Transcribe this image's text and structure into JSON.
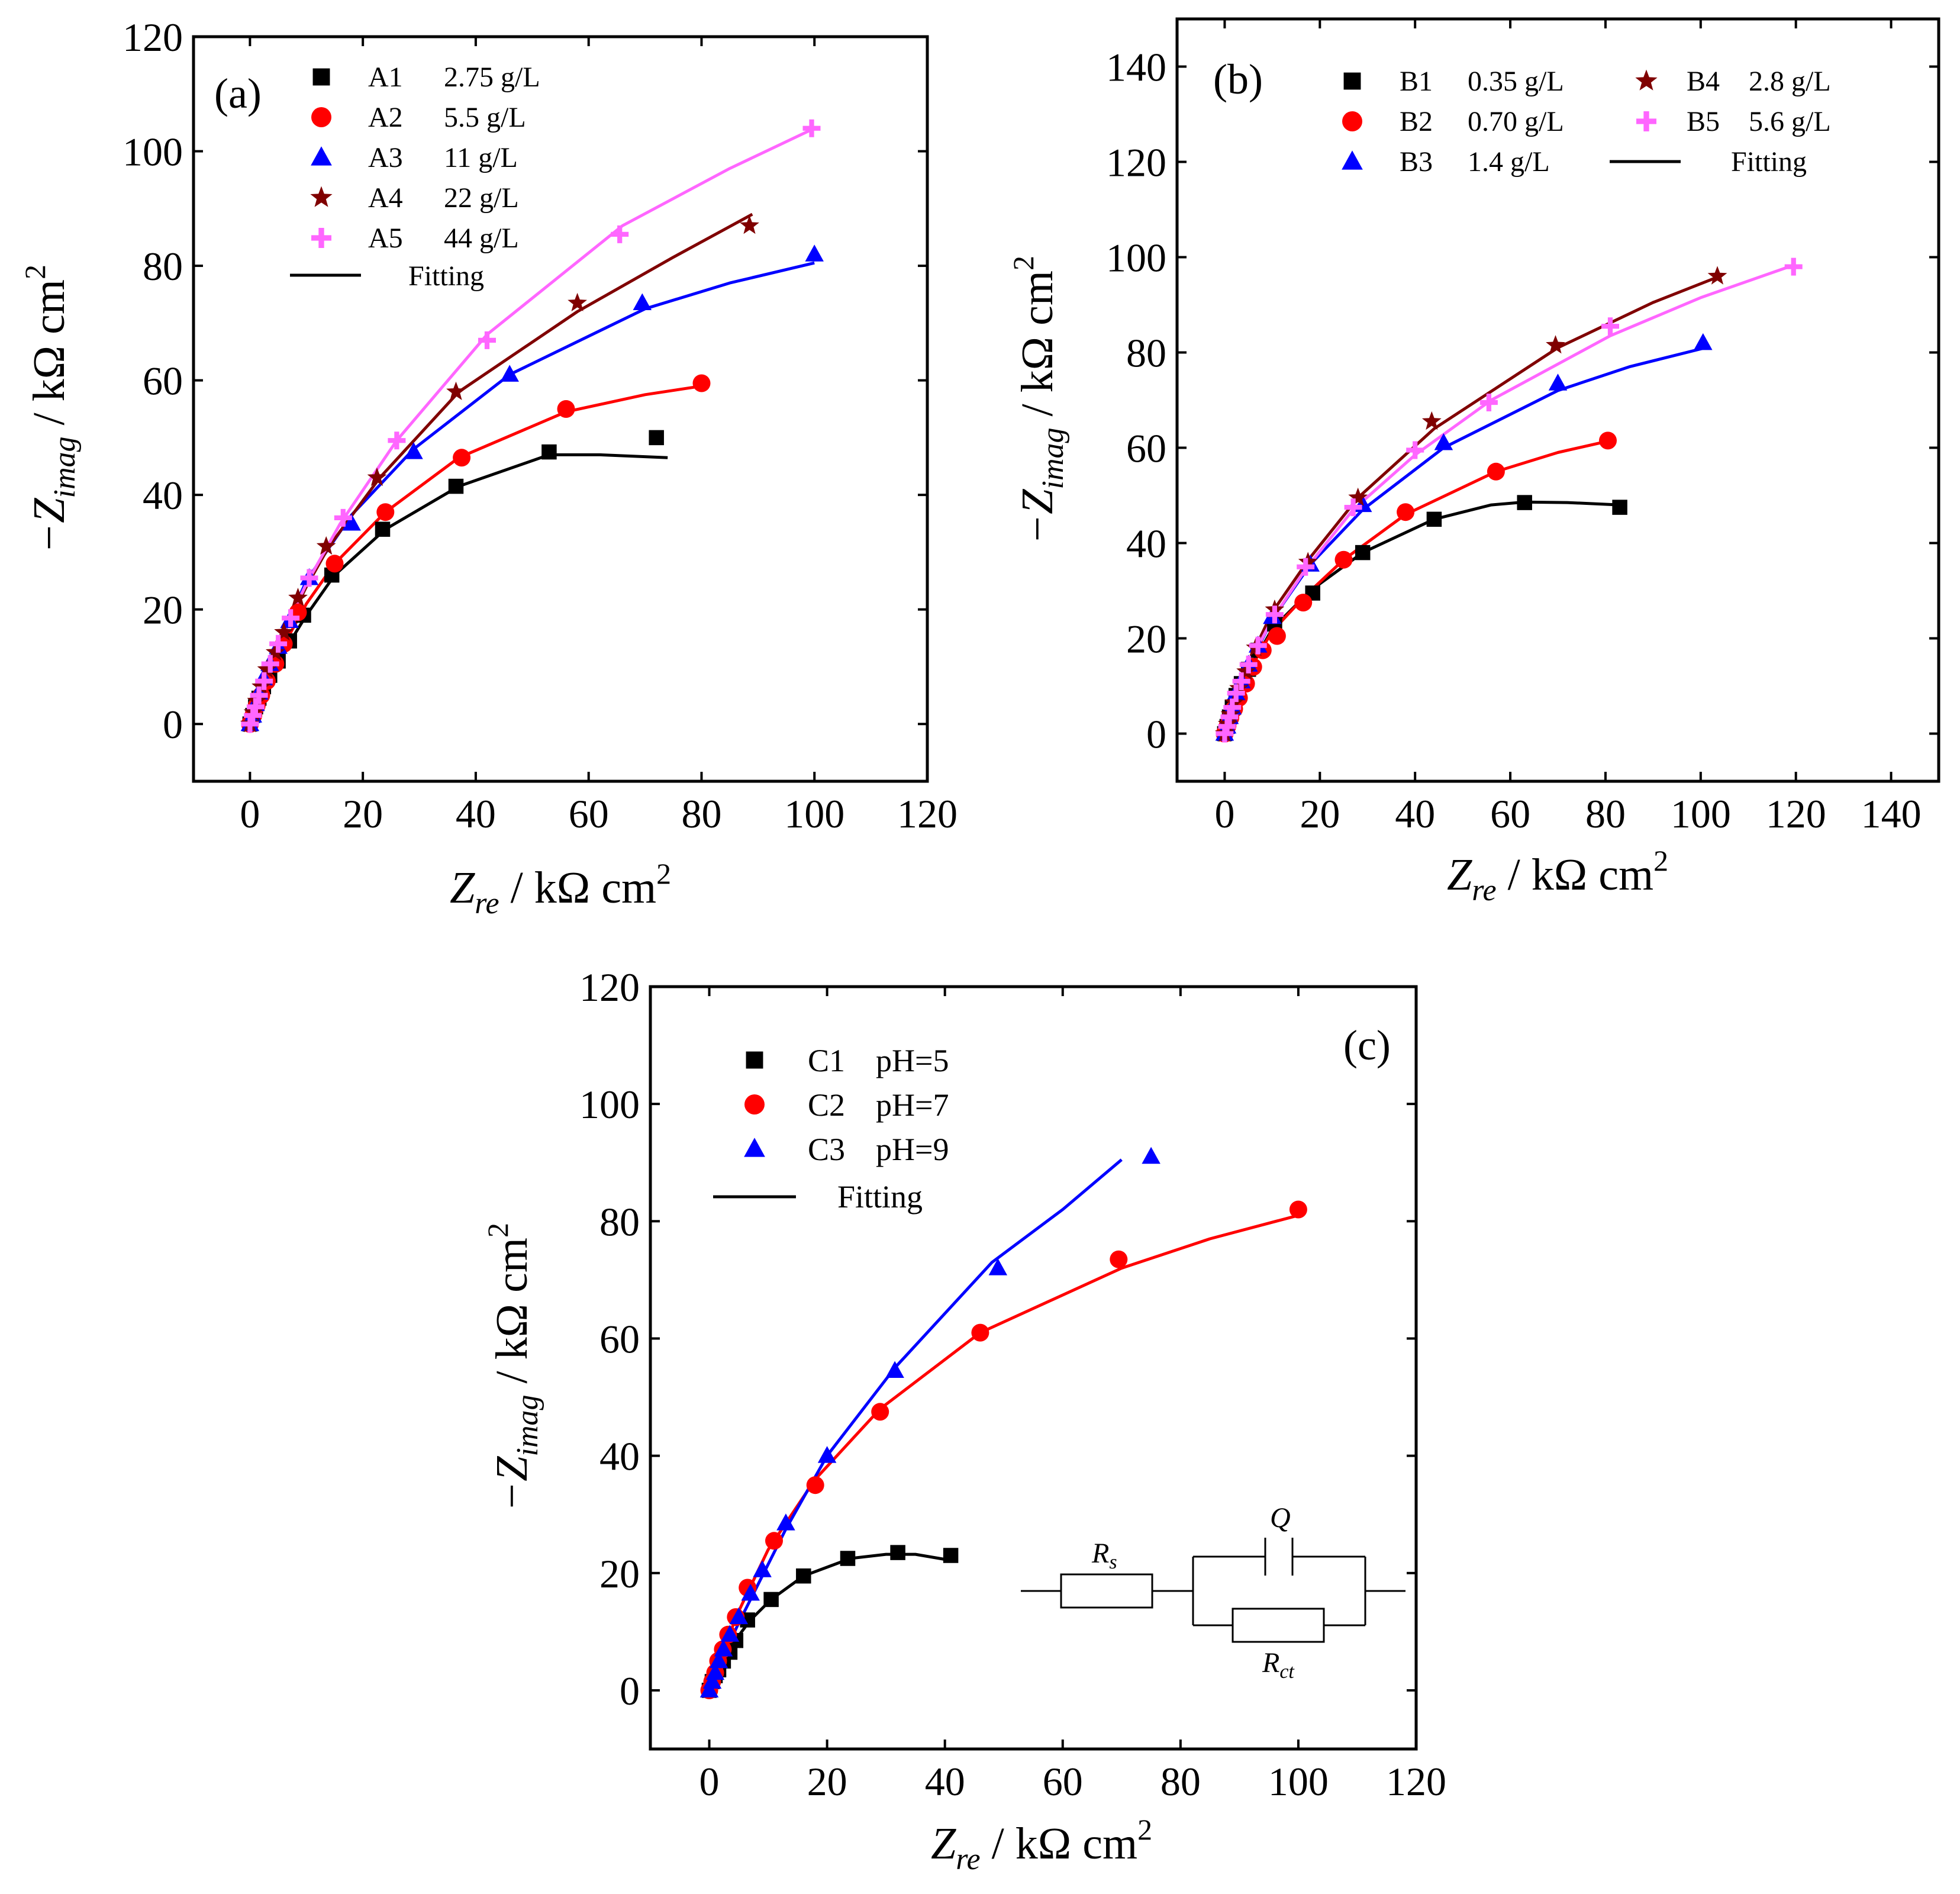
{
  "chart_data": [
    {
      "id": "a",
      "type": "scatter",
      "panel_label": "(a)",
      "xlabel_main": "Z",
      "xlabel_sub": "re",
      "xlabel_unit": " / kΩ cm",
      "xlabel_sup": "2",
      "ylabel_main": "−Z",
      "ylabel_sub": "imag",
      "ylabel_unit": " / kΩ cm",
      "ylabel_sup": "2",
      "xlim": [
        -10,
        120
      ],
      "ylim": [
        -10,
        120
      ],
      "xticks": [
        0,
        20,
        40,
        60,
        80,
        100,
        120
      ],
      "yticks": [
        0,
        20,
        40,
        60,
        80,
        100,
        120
      ],
      "legend_position": "top-left",
      "legend_layout": "single-column",
      "fit_label": "Fitting",
      "series": [
        {
          "name": "A1",
          "desc": "2.75 g/L",
          "marker": "square",
          "color": "#000000",
          "x": [
            0,
            0.5,
            1,
            1.6,
            2.4,
            3.5,
            5,
            7,
            9.5,
            14.5,
            23.5,
            36.5,
            53,
            72
          ],
          "y": [
            0,
            1.5,
            3,
            4.5,
            6.5,
            8.5,
            11,
            14.5,
            19,
            26,
            34,
            41.5,
            47.5,
            50
          ],
          "fit_x": [
            0,
            2,
            5,
            10,
            15,
            24,
            37,
            53,
            62,
            74
          ],
          "fit_y": [
            0,
            5,
            11,
            19,
            26,
            34,
            41.5,
            47,
            47,
            46.5
          ]
        },
        {
          "name": "A2",
          "desc": "5.5 g/L",
          "marker": "circle",
          "color": "#ff0000",
          "x": [
            0,
            0.6,
            1.2,
            2,
            3,
            4.5,
            6,
            8.5,
            15,
            24,
            37.5,
            56,
            80
          ],
          "y": [
            0,
            1.5,
            3.2,
            5,
            7.5,
            10.5,
            14,
            19.5,
            28,
            37,
            46.5,
            55,
            59.5
          ],
          "fit_x": [
            0,
            2,
            5,
            10,
            15,
            24,
            37,
            56,
            70,
            80
          ],
          "fit_y": [
            0,
            5,
            12,
            21,
            28,
            37,
            46.5,
            54.5,
            57.5,
            59
          ]
        },
        {
          "name": "A3",
          "desc": "11 g/L",
          "marker": "triangle",
          "color": "#0000ff",
          "x": [
            0,
            0.5,
            1,
            1.6,
            2.4,
            3.5,
            5,
            7,
            10.5,
            18,
            29,
            46,
            69.5,
            100
          ],
          "y": [
            0,
            1.5,
            3.5,
            5.5,
            8,
            10.5,
            13.5,
            18,
            25.5,
            35,
            47.5,
            61,
            73.5,
            82
          ],
          "fit_x": [
            0,
            2,
            5,
            10,
            18,
            29,
            46,
            70,
            85,
            100
          ],
          "fit_y": [
            0,
            6,
            14,
            25,
            36.5,
            48,
            61,
            72.5,
            77,
            80.5
          ]
        },
        {
          "name": "A4",
          "desc": "22 g/L",
          "marker": "star",
          "color": "#800000",
          "x": [
            0,
            0.6,
            1.2,
            2,
            3,
            4.5,
            6,
            8.5,
            13.5,
            22.5,
            36.5,
            58,
            88.5
          ],
          "y": [
            0,
            2,
            4,
            6.5,
            9.5,
            12.5,
            16,
            22,
            31,
            43,
            58,
            73.5,
            87
          ],
          "fit_x": [
            0,
            2,
            5,
            10,
            14,
            23,
            37,
            58,
            75,
            89
          ],
          "fit_y": [
            0,
            6,
            14,
            24,
            31,
            43,
            58,
            72,
            81.5,
            89
          ]
        },
        {
          "name": "A5",
          "desc": "44 g/L",
          "marker": "plus",
          "color": "#ff66ff",
          "x": [
            0,
            0.5,
            1,
            1.6,
            2.5,
            3.6,
            5,
            7.2,
            10.5,
            16.5,
            26,
            42,
            65.5,
            99.5
          ],
          "y": [
            0,
            1.5,
            3,
            5,
            7.5,
            10.5,
            14,
            18.5,
            25.5,
            36,
            49.5,
            67,
            85.5,
            104
          ],
          "fit_x": [
            0,
            2,
            5,
            10,
            16,
            26,
            42,
            66,
            85,
            100
          ],
          "fit_y": [
            0,
            6,
            14,
            24.5,
            35,
            49.5,
            68,
            87,
            97,
            104
          ]
        }
      ]
    },
    {
      "id": "b",
      "type": "scatter",
      "panel_label": "(b)",
      "xlabel_main": "Z",
      "xlabel_sub": "re",
      "xlabel_unit": " / kΩ cm",
      "xlabel_sup": "2",
      "ylabel_main": "−Z",
      "ylabel_sub": "imag",
      "ylabel_unit": " / kΩ cm",
      "ylabel_sup": "2",
      "xlim": [
        -10,
        150
      ],
      "ylim": [
        -10,
        150
      ],
      "xticks": [
        0,
        20,
        40,
        60,
        80,
        100,
        120,
        140
      ],
      "yticks": [
        0,
        20,
        40,
        60,
        80,
        100,
        120,
        140
      ],
      "legend_position": "top",
      "legend_layout": "two-column",
      "fit_label": "Fitting",
      "series": [
        {
          "name": "B1",
          "desc": "0.35 g/L",
          "marker": "square",
          "color": "#000000",
          "x": [
            0,
            0.5,
            1,
            1.6,
            2.4,
            3.5,
            5,
            7,
            10.5,
            18.5,
            29,
            44,
            63,
            83
          ],
          "y": [
            0,
            1.5,
            3.5,
            5.5,
            8,
            10.5,
            13.5,
            17.5,
            23,
            29.5,
            38,
            45,
            48.5,
            47.5
          ],
          "fit_x": [
            0,
            2,
            5,
            10,
            18,
            29,
            44,
            56,
            63,
            72,
            83
          ],
          "fit_y": [
            0,
            6,
            13,
            22,
            30,
            38,
            45,
            48,
            48.6,
            48.5,
            48
          ]
        },
        {
          "name": "B2",
          "desc": "0.70 g/L",
          "marker": "circle",
          "color": "#ff0000",
          "x": [
            0,
            0.6,
            1.2,
            2,
            3,
            4.5,
            6,
            8,
            11,
            16.5,
            25,
            38,
            57,
            80.5
          ],
          "y": [
            0,
            1.6,
            3.3,
            5.2,
            7.5,
            10.5,
            14,
            17.5,
            20.5,
            27.5,
            36.5,
            46.5,
            55,
            61.5
          ],
          "fit_x": [
            0,
            2,
            5,
            10,
            17,
            25,
            38,
            57,
            70,
            81
          ],
          "fit_y": [
            0,
            6,
            13,
            21.5,
            29,
            36.5,
            46,
            55,
            59,
            61.5
          ]
        },
        {
          "name": "B3",
          "desc": "1.4 g/L",
          "marker": "triangle",
          "color": "#0000ff",
          "x": [
            0,
            0.5,
            1,
            1.6,
            2.4,
            3.5,
            5,
            7,
            10,
            18,
            29,
            46,
            70,
            100.5
          ],
          "y": [
            0,
            1.5,
            3.5,
            5.5,
            8.5,
            11,
            14.5,
            18.5,
            24.5,
            35.5,
            48,
            61,
            73.5,
            82
          ],
          "fit_x": [
            0,
            2,
            5,
            10,
            18,
            29,
            46,
            70,
            85,
            101
          ],
          "fit_y": [
            0,
            6,
            14,
            24,
            35.5,
            47,
            60,
            72,
            77,
            81
          ]
        },
        {
          "name": "B4",
          "desc": "2.8 g/L",
          "marker": "star",
          "color": "#800000",
          "x": [
            0,
            0.6,
            1.2,
            2,
            3,
            4.5,
            6.5,
            10.5,
            17.5,
            28,
            43.5,
            69.5,
            103.5
          ],
          "y": [
            0,
            2,
            4,
            6.5,
            9.5,
            13,
            18,
            26,
            36,
            49.5,
            65.5,
            81.5,
            96
          ],
          "fit_x": [
            0,
            2,
            5,
            10,
            18,
            28,
            44,
            70,
            90,
            104
          ],
          "fit_y": [
            0,
            7,
            15,
            25.5,
            37,
            49.5,
            64,
            81,
            90.5,
            96
          ]
        },
        {
          "name": "B5",
          "desc": "5.6 g/L",
          "marker": "plus",
          "color": "#ff66ff",
          "x": [
            0,
            0.5,
            1,
            1.6,
            2.4,
            3.5,
            5,
            7,
            10.5,
            17,
            27,
            40,
            55.5,
            81,
            119.5
          ],
          "y": [
            0,
            1.5,
            3.5,
            5.5,
            8.5,
            11,
            14.5,
            18.5,
            25,
            35,
            47.5,
            59.5,
            69.5,
            85.5,
            98
          ],
          "fit_x": [
            0,
            2,
            5,
            10,
            17,
            27,
            40,
            56,
            81,
            100,
            120
          ],
          "fit_y": [
            0,
            6.5,
            14.5,
            24,
            34.5,
            47,
            58.5,
            70,
            83.5,
            91.5,
            98.5
          ]
        }
      ]
    },
    {
      "id": "c",
      "type": "scatter",
      "panel_label": "(c)",
      "xlabel_main": "Z",
      "xlabel_sub": "re",
      "xlabel_unit": " / kΩ cm",
      "xlabel_sup": "2",
      "ylabel_main": "−Z",
      "ylabel_sub": "imag",
      "ylabel_unit": " / kΩ cm",
      "ylabel_sup": "2",
      "xlim": [
        -10,
        120
      ],
      "ylim": [
        -10,
        120
      ],
      "xticks": [
        0,
        20,
        40,
        60,
        80,
        100,
        120
      ],
      "yticks": [
        0,
        20,
        40,
        60,
        80,
        100,
        120
      ],
      "legend_position": "top-left",
      "legend_layout": "single-column",
      "fit_label": "Fitting",
      "series": [
        {
          "name": "C1",
          "desc": "pH=5",
          "marker": "square",
          "color": "#000000",
          "x": [
            0,
            0.5,
            1,
            1.6,
            2.4,
            3.5,
            4.5,
            6.5,
            10.5,
            16,
            23.5,
            32,
            41
          ],
          "y": [
            0,
            1.5,
            2.5,
            3.5,
            5,
            6.5,
            8.5,
            12,
            15.5,
            19.5,
            22.5,
            23.5,
            23
          ],
          "fit_x": [
            0,
            2,
            4,
            7,
            10.5,
            16,
            24,
            30,
            35,
            42
          ],
          "fit_y": [
            0,
            4.5,
            8,
            12,
            15.5,
            19.5,
            22.5,
            23.2,
            23.2,
            22
          ]
        },
        {
          "name": "C2",
          "desc": "pH=7",
          "marker": "circle",
          "color": "#ff0000",
          "x": [
            0,
            0.5,
            1,
            1.5,
            2.3,
            3.2,
            4.5,
            6.5,
            11,
            18,
            29,
            46,
            69.5,
            100
          ],
          "y": [
            0,
            1.5,
            3,
            5,
            7,
            9.5,
            12.5,
            17.5,
            25.5,
            35,
            47.5,
            61,
            73.5,
            82
          ],
          "fit_x": [
            0,
            2,
            5,
            10,
            18,
            29,
            46,
            70,
            85,
            100
          ],
          "fit_y": [
            0,
            6,
            13.5,
            24,
            36,
            48,
            61,
            72,
            77,
            81
          ]
        },
        {
          "name": "C3",
          "desc": "pH=9",
          "marker": "triangle",
          "color": "#0000ff",
          "x": [
            0,
            0.5,
            1,
            1.6,
            2.4,
            3.5,
            5,
            7,
            9,
            13,
            20,
            31.5,
            49,
            75
          ],
          "y": [
            0,
            1.5,
            3,
            5,
            7,
            9.5,
            12.5,
            16.5,
            20.5,
            28.5,
            40,
            54.5,
            72,
            91
          ],
          "fit_x": [
            0,
            2,
            5,
            9,
            13,
            20,
            31.5,
            48,
            60,
            70
          ],
          "fit_y": [
            0,
            5,
            11.5,
            19.5,
            27.5,
            40,
            55,
            73,
            82,
            90.5
          ]
        }
      ],
      "circuit": {
        "rs": "R",
        "rs_sub": "s",
        "q": "Q",
        "rct": "R",
        "rct_sub": "ct"
      }
    }
  ]
}
